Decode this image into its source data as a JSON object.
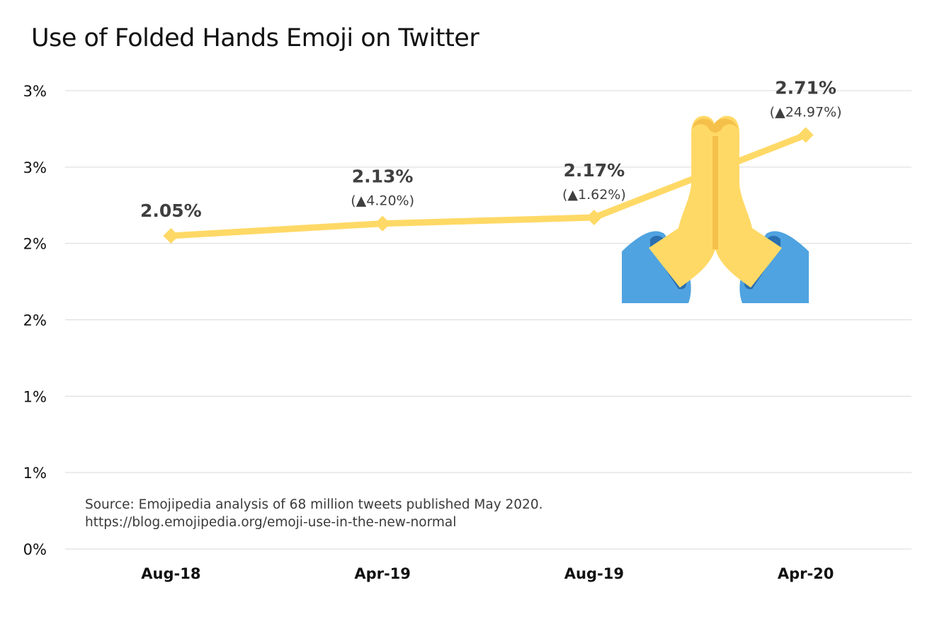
{
  "chart_data": {
    "type": "line",
    "title": "Use of Folded Hands Emoji on Twitter",
    "categories": [
      "Aug-18",
      "Apr-19",
      "Aug-19",
      "Apr-20"
    ],
    "series": [
      {
        "values": [
          2.05,
          2.13,
          2.17,
          2.71
        ],
        "value_labels": [
          "2.05%",
          "2.13%",
          "2.17%",
          "2.71%"
        ],
        "change_labels": [
          "",
          "(▲4.20%)",
          "(▲1.62%)",
          "(▲24.97%)"
        ],
        "color": "#ffd966"
      }
    ],
    "ylim": [
      0,
      3
    ],
    "y_ticks": [
      0,
      0.5,
      1.0,
      1.5,
      2.0,
      2.5,
      3.0
    ],
    "y_tick_labels": [
      "0%",
      "1%",
      "1%",
      "2%",
      "2%",
      "3%",
      "3%"
    ],
    "xlabel": "",
    "ylabel": "",
    "grid": true,
    "legend": "none",
    "source_lines": [
      "Source: Emojipedia analysis of 68 million tweets published May 2020.",
      "https://blog.emojipedia.org/emoji-use-in-the-new-normal"
    ],
    "illustration": "folded-hands-emoji",
    "colors": {
      "line": "#ffd966",
      "grid": "#d9d9d9",
      "emoji_hands": "#ffd966",
      "emoji_shading": "#f5c04a",
      "emoji_sleeves": "#4fa3e0",
      "emoji_cuff": "#2a6fb0"
    }
  }
}
